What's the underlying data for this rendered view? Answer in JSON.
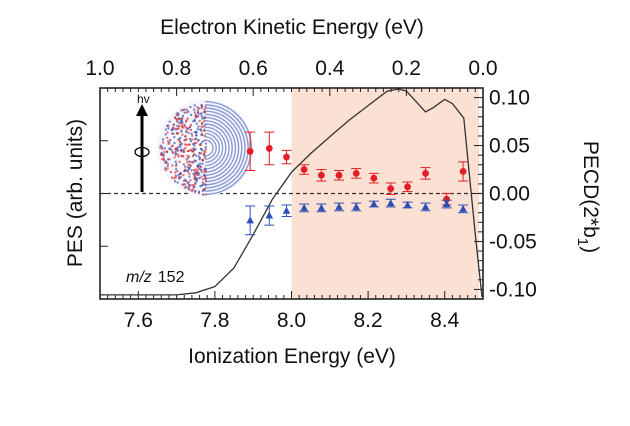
{
  "chart_data": {
    "type": "scatter",
    "title": "",
    "annotation_prefix": "m/z",
    "annotation_value": "152",
    "photon_label": "hv",
    "x_bottom": {
      "label": "Ionization Energy (eV)",
      "range": [
        7.5,
        8.5
      ],
      "ticks": [
        7.6,
        7.8,
        8.0,
        8.2,
        8.4
      ],
      "tick_labels": [
        "7.6",
        "7.8",
        "8.0",
        "8.2",
        "8.4"
      ]
    },
    "x_top": {
      "label": "Electron Kinetic Energy (eV)",
      "ticks": [
        1.0,
        0.8,
        0.6,
        0.4,
        0.2,
        0.0
      ],
      "tick_labels": [
        "1.0",
        "0.8",
        "0.6",
        "0.4",
        "0.2",
        "0.0"
      ]
    },
    "y_left": {
      "label": "PES (arb. units)",
      "range": [
        0,
        1
      ]
    },
    "y_right": {
      "label_main": "PECD(2*b",
      "label_sub": "1",
      "label_close": ")",
      "range": [
        -0.11,
        0.11
      ],
      "ticks": [
        0.1,
        0.05,
        0.0,
        -0.05,
        -0.1
      ],
      "tick_labels": [
        "0.10",
        "0.05",
        "0.00",
        "-0.05",
        "-0.10"
      ]
    },
    "shaded_region": {
      "x_start": 8.0,
      "x_end": 8.5,
      "color": "#fbe0d4"
    },
    "series": [
      {
        "name": "PES",
        "kind": "line",
        "axis": "left",
        "color": "#333333",
        "x": [
          7.5,
          7.7,
          7.75,
          7.8,
          7.85,
          7.9,
          7.95,
          8.0,
          8.05,
          8.1,
          8.15,
          8.2,
          8.25,
          8.28,
          8.3,
          8.33,
          8.35,
          8.37,
          8.4,
          8.42,
          8.45,
          8.48
        ],
        "y": [
          0.01,
          0.01,
          0.02,
          0.05,
          0.14,
          0.3,
          0.47,
          0.6,
          0.69,
          0.77,
          0.85,
          0.92,
          0.99,
          1.0,
          0.99,
          0.93,
          0.89,
          0.91,
          0.95,
          0.93,
          0.86,
          0.3
        ]
      },
      {
        "name": "PECD positive",
        "kind": "errorbar",
        "axis": "right",
        "color": "#e41e26",
        "marker": "circle",
        "x": [
          7.892,
          7.942,
          7.987,
          8.033,
          8.078,
          8.124,
          8.169,
          8.215,
          8.259,
          8.303,
          8.35,
          8.405,
          8.448
        ],
        "y": [
          0.044,
          0.047,
          0.038,
          0.025,
          0.019,
          0.019,
          0.021,
          0.016,
          0.005,
          0.007,
          0.021,
          -0.006,
          0.023
        ],
        "err": [
          0.02,
          0.017,
          0.007,
          0.005,
          0.006,
          0.005,
          0.005,
          0.005,
          0.006,
          0.005,
          0.006,
          0.006,
          0.01
        ]
      },
      {
        "name": "PECD negative",
        "kind": "errorbar",
        "axis": "right",
        "color": "#2e4fb5",
        "marker": "triangle",
        "x": [
          7.892,
          7.942,
          7.987,
          8.033,
          8.078,
          8.124,
          8.169,
          8.215,
          8.259,
          8.303,
          8.35,
          8.405,
          8.448
        ],
        "y": [
          -0.028,
          -0.023,
          -0.018,
          -0.015,
          -0.015,
          -0.014,
          -0.014,
          -0.011,
          -0.01,
          -0.012,
          -0.014,
          -0.011,
          -0.016
        ],
        "err": [
          0.015,
          0.01,
          0.006,
          0.004,
          0.004,
          0.004,
          0.004,
          0.003,
          0.004,
          0.003,
          0.004,
          0.004,
          0.004
        ]
      }
    ],
    "reference_line": {
      "y": 0.0,
      "style": "dashed"
    }
  }
}
